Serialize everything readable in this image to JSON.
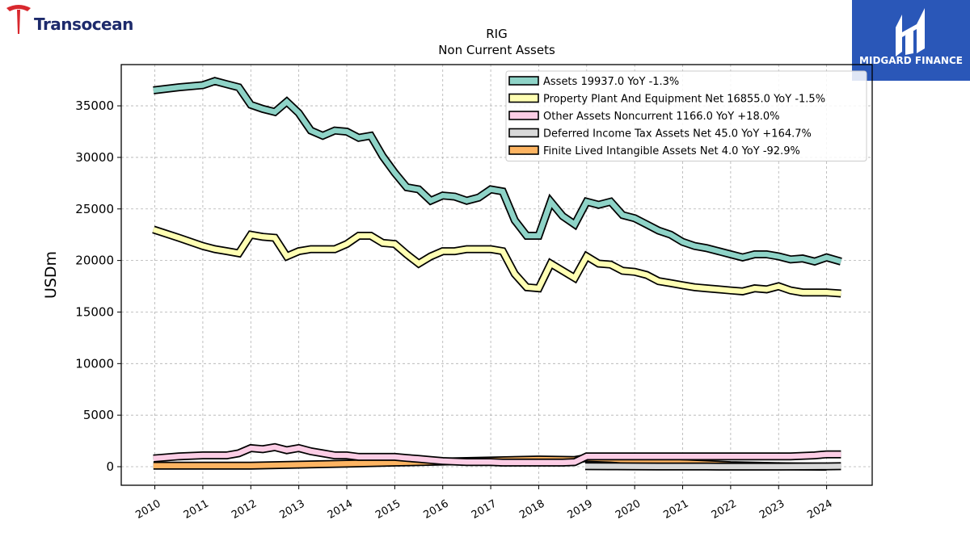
{
  "logos": {
    "left_text": "Transocean",
    "right_text": "MIDGARD FINANCE"
  },
  "chart_data": {
    "type": "line",
    "title": "RIG",
    "subtitle": "Non Current  Assets",
    "ylabel": "USDm",
    "xlabel": "",
    "ylim": [
      -1800,
      39000
    ],
    "xlim": [
      2009.3,
      2024.95
    ],
    "yticks": [
      0,
      5000,
      10000,
      15000,
      20000,
      25000,
      30000,
      35000
    ],
    "ytick_labels": [
      "0",
      "5000",
      "10000",
      "15000",
      "20000",
      "25000",
      "30000",
      "35000"
    ],
    "xticks": [
      2010,
      2011,
      2012,
      2013,
      2014,
      2015,
      2016,
      2017,
      2018,
      2019,
      2020,
      2021,
      2022,
      2023,
      2024
    ],
    "xtick_labels": [
      "2010",
      "2011",
      "2012",
      "2013",
      "2014",
      "2015",
      "2016",
      "2017",
      "2018",
      "2019",
      "2020",
      "2021",
      "2022",
      "2023",
      "2024"
    ],
    "grid": true,
    "legend_position": "top-right",
    "series": [
      {
        "name": "Assets  19937.0 YoY -1.3%",
        "color": "#8ed3c7",
        "points": [
          [
            2009.97,
            36500
          ],
          [
            2010.5,
            36800
          ],
          [
            2011.0,
            37000
          ],
          [
            2011.25,
            37400
          ],
          [
            2011.5,
            37100
          ],
          [
            2011.75,
            36800
          ],
          [
            2012.0,
            35100
          ],
          [
            2012.25,
            34700
          ],
          [
            2012.5,
            34400
          ],
          [
            2012.75,
            35400
          ],
          [
            2013.0,
            34300
          ],
          [
            2013.25,
            32600
          ],
          [
            2013.5,
            32100
          ],
          [
            2013.75,
            32600
          ],
          [
            2014.0,
            32500
          ],
          [
            2014.25,
            31900
          ],
          [
            2014.5,
            32100
          ],
          [
            2014.75,
            30100
          ],
          [
            2015.0,
            28500
          ],
          [
            2015.25,
            27100
          ],
          [
            2015.5,
            26900
          ],
          [
            2015.75,
            25800
          ],
          [
            2016.0,
            26300
          ],
          [
            2016.25,
            26200
          ],
          [
            2016.5,
            25800
          ],
          [
            2016.75,
            26100
          ],
          [
            2017.0,
            26900
          ],
          [
            2017.25,
            26700
          ],
          [
            2017.5,
            23900
          ],
          [
            2017.75,
            22400
          ],
          [
            2018.0,
            22400
          ],
          [
            2018.25,
            25700
          ],
          [
            2018.5,
            24300
          ],
          [
            2018.75,
            23500
          ],
          [
            2019.0,
            25700
          ],
          [
            2019.25,
            25400
          ],
          [
            2019.5,
            25700
          ],
          [
            2019.75,
            24400
          ],
          [
            2020.0,
            24100
          ],
          [
            2020.25,
            23500
          ],
          [
            2020.5,
            22900
          ],
          [
            2020.75,
            22500
          ],
          [
            2021.0,
            21800
          ],
          [
            2021.25,
            21400
          ],
          [
            2021.5,
            21200
          ],
          [
            2021.75,
            20900
          ],
          [
            2022.0,
            20600
          ],
          [
            2022.25,
            20300
          ],
          [
            2022.5,
            20600
          ],
          [
            2022.75,
            20600
          ],
          [
            2023.0,
            20400
          ],
          [
            2023.25,
            20100
          ],
          [
            2023.5,
            20200
          ],
          [
            2023.75,
            19900
          ],
          [
            2024.0,
            20300
          ],
          [
            2024.3,
            19900
          ]
        ]
      },
      {
        "name": "Property Plant And Equipment Net  16855.0 YoY -1.5%",
        "color": "#ffffb3",
        "points": [
          [
            2009.97,
            23000
          ],
          [
            2010.5,
            22200
          ],
          [
            2011.0,
            21400
          ],
          [
            2011.25,
            21100
          ],
          [
            2011.5,
            20900
          ],
          [
            2011.75,
            20700
          ],
          [
            2012.0,
            22500
          ],
          [
            2012.25,
            22300
          ],
          [
            2012.5,
            22200
          ],
          [
            2012.75,
            20400
          ],
          [
            2013.0,
            20900
          ],
          [
            2013.25,
            21100
          ],
          [
            2013.5,
            21100
          ],
          [
            2013.75,
            21100
          ],
          [
            2014.0,
            21600
          ],
          [
            2014.25,
            22400
          ],
          [
            2014.5,
            22400
          ],
          [
            2014.75,
            21700
          ],
          [
            2015.0,
            21600
          ],
          [
            2015.25,
            20600
          ],
          [
            2015.5,
            19700
          ],
          [
            2015.75,
            20400
          ],
          [
            2016.0,
            20900
          ],
          [
            2016.25,
            20900
          ],
          [
            2016.5,
            21100
          ],
          [
            2016.75,
            21100
          ],
          [
            2017.0,
            21100
          ],
          [
            2017.25,
            20900
          ],
          [
            2017.5,
            18700
          ],
          [
            2017.75,
            17400
          ],
          [
            2018.0,
            17300
          ],
          [
            2018.25,
            19700
          ],
          [
            2018.5,
            19000
          ],
          [
            2018.75,
            18300
          ],
          [
            2019.0,
            20400
          ],
          [
            2019.25,
            19700
          ],
          [
            2019.5,
            19600
          ],
          [
            2019.75,
            19000
          ],
          [
            2020.0,
            18900
          ],
          [
            2020.25,
            18600
          ],
          [
            2020.5,
            18000
          ],
          [
            2020.75,
            17800
          ],
          [
            2021.0,
            17600
          ],
          [
            2021.25,
            17400
          ],
          [
            2021.5,
            17300
          ],
          [
            2021.75,
            17200
          ],
          [
            2022.0,
            17100
          ],
          [
            2022.25,
            17000
          ],
          [
            2022.5,
            17300
          ],
          [
            2022.75,
            17200
          ],
          [
            2023.0,
            17500
          ],
          [
            2023.25,
            17100
          ],
          [
            2023.5,
            16900
          ],
          [
            2023.75,
            16900
          ],
          [
            2024.0,
            16900
          ],
          [
            2024.3,
            16800
          ]
        ]
      },
      {
        "name": "Other Assets Noncurrent  1166.0 YoY +18.0%",
        "color": "#fccde5",
        "points": [
          [
            2009.97,
            800
          ],
          [
            2010.5,
            1000
          ],
          [
            2011.0,
            1100
          ],
          [
            2011.25,
            1100
          ],
          [
            2011.5,
            1100
          ],
          [
            2011.75,
            1300
          ],
          [
            2012.0,
            1800
          ],
          [
            2012.25,
            1700
          ],
          [
            2012.5,
            1900
          ],
          [
            2012.75,
            1600
          ],
          [
            2013.0,
            1800
          ],
          [
            2013.25,
            1500
          ],
          [
            2013.5,
            1300
          ],
          [
            2013.75,
            1100
          ],
          [
            2014.0,
            1100
          ],
          [
            2014.25,
            950
          ],
          [
            2014.5,
            950
          ],
          [
            2014.75,
            950
          ],
          [
            2015.0,
            950
          ],
          [
            2015.25,
            850
          ],
          [
            2015.5,
            750
          ],
          [
            2015.75,
            650
          ],
          [
            2016.0,
            550
          ],
          [
            2016.25,
            500
          ],
          [
            2016.5,
            450
          ],
          [
            2016.75,
            450
          ],
          [
            2017.0,
            450
          ],
          [
            2017.25,
            400
          ],
          [
            2017.5,
            400
          ],
          [
            2017.75,
            400
          ],
          [
            2018.0,
            400
          ],
          [
            2018.25,
            400
          ],
          [
            2018.5,
            400
          ],
          [
            2018.75,
            450
          ],
          [
            2019.0,
            1000
          ],
          [
            2019.25,
            1000
          ],
          [
            2019.5,
            1000
          ],
          [
            2019.75,
            1000
          ],
          [
            2020.0,
            1000
          ],
          [
            2020.25,
            1000
          ],
          [
            2020.5,
            1000
          ],
          [
            2020.75,
            1000
          ],
          [
            2021.0,
            1000
          ],
          [
            2021.25,
            1000
          ],
          [
            2021.5,
            1000
          ],
          [
            2021.75,
            1000
          ],
          [
            2022.0,
            1000
          ],
          [
            2022.25,
            1000
          ],
          [
            2022.5,
            1000
          ],
          [
            2022.75,
            1000
          ],
          [
            2023.0,
            1000
          ],
          [
            2023.25,
            1000
          ],
          [
            2023.5,
            1050
          ],
          [
            2023.75,
            1100
          ],
          [
            2024.0,
            1200
          ],
          [
            2024.3,
            1200
          ]
        ]
      },
      {
        "name": "Deferred Income Tax Assets Net  45.0 YoY +164.7%",
        "color": "#d9d9d9",
        "points": [
          [
            2018.97,
            45
          ],
          [
            2019.5,
            40
          ],
          [
            2020.0,
            30
          ],
          [
            2020.5,
            25
          ],
          [
            2021.0,
            20
          ],
          [
            2021.5,
            15
          ],
          [
            2022.0,
            12
          ],
          [
            2022.5,
            10
          ],
          [
            2023.0,
            12
          ],
          [
            2023.5,
            17
          ],
          [
            2024.0,
            30
          ],
          [
            2024.3,
            45
          ]
        ]
      },
      {
        "name": "Finite Lived Intangible Assets Net  4.0 YoY -92.9%",
        "color": "#fdb462",
        "points": [
          [
            2009.97,
            100
          ],
          [
            2011.0,
            100
          ],
          [
            2012.0,
            100
          ],
          [
            2013.0,
            200
          ],
          [
            2014.0,
            300
          ],
          [
            2015.0,
            400
          ],
          [
            2016.0,
            500
          ],
          [
            2017.0,
            600
          ],
          [
            2018.0,
            700
          ],
          [
            2018.75,
            650
          ],
          [
            2019.0,
            850
          ],
          [
            2019.5,
            750
          ],
          [
            2020.0,
            600
          ],
          [
            2020.5,
            500
          ],
          [
            2021.0,
            350
          ],
          [
            2021.5,
            250
          ],
          [
            2022.0,
            150
          ],
          [
            2022.5,
            100
          ],
          [
            2023.0,
            50
          ],
          [
            2023.5,
            20
          ],
          [
            2024.0,
            4
          ]
        ]
      }
    ]
  }
}
